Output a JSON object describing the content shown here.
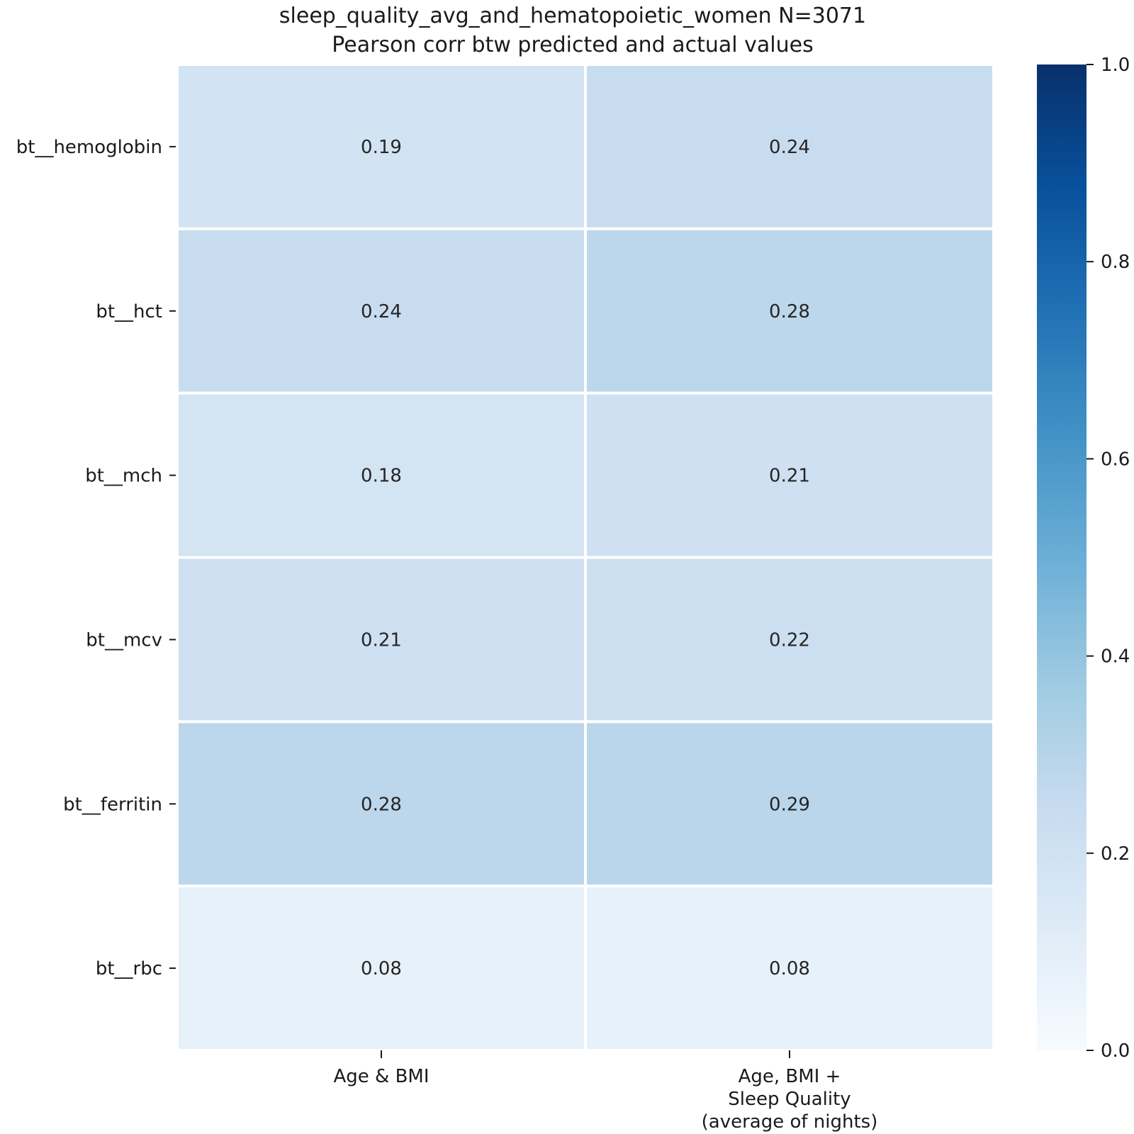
{
  "chart_data": {
    "type": "heatmap",
    "title": "sleep_quality_avg_and_hematopoietic_women N=3071",
    "subtitle": "Pearson corr btw predicted and actual values",
    "rows": [
      "bt__hemoglobin",
      "bt__hct",
      "bt__mch",
      "bt__mcv",
      "bt__ferritin",
      "bt__rbc"
    ],
    "columns": [
      [
        "Age & BMI"
      ],
      [
        "Age, BMI +",
        "Sleep Quality",
        "(average of nights)"
      ]
    ],
    "values": [
      [
        0.19,
        0.24
      ],
      [
        0.24,
        0.28
      ],
      [
        0.18,
        0.21
      ],
      [
        0.21,
        0.22
      ],
      [
        0.28,
        0.29
      ],
      [
        0.08,
        0.08
      ]
    ],
    "value_labels": [
      [
        "0.19",
        "0.24"
      ],
      [
        "0.24",
        "0.28"
      ],
      [
        "0.18",
        "0.21"
      ],
      [
        "0.21",
        "0.22"
      ],
      [
        "0.28",
        "0.29"
      ],
      [
        "0.08",
        "0.08"
      ]
    ],
    "vmin": 0.0,
    "vmax": 1.0,
    "colormap": "Blues",
    "colorbar_ticks": [
      "0.0",
      "0.2",
      "0.4",
      "0.6",
      "0.8",
      "1.0"
    ],
    "colorbar_tick_values": [
      0.0,
      0.2,
      0.4,
      0.6,
      0.8,
      1.0
    ],
    "grid": false
  }
}
